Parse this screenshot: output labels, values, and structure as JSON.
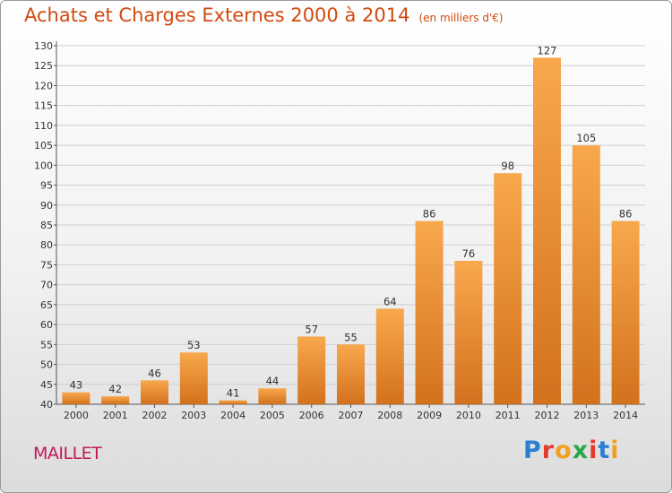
{
  "title": "Achats et Charges Externes 2000 à 2014",
  "unit_note": "(en milliers d'€)",
  "place_name": "MAILLET",
  "logo": {
    "letters": [
      "P",
      "r",
      "o",
      "x",
      "i",
      "t",
      "i"
    ],
    "colors": [
      "#2b7fd1",
      "#e23b2b",
      "#f2a01f",
      "#2aa748",
      "#e23b2b",
      "#2b7fd1",
      "#f2a01f"
    ]
  },
  "colors": {
    "bar_light": "#f8a84d",
    "bar_dark": "#d3711d",
    "title": "#d04a0e"
  },
  "chart_data": {
    "type": "bar",
    "categories": [
      "2000",
      "2001",
      "2002",
      "2003",
      "2004",
      "2005",
      "2006",
      "2007",
      "2008",
      "2009",
      "2010",
      "2011",
      "2012",
      "2013",
      "2014"
    ],
    "values": [
      43,
      42,
      46,
      53,
      41,
      44,
      57,
      55,
      64,
      86,
      76,
      98,
      127,
      105,
      86
    ],
    "title": "Achats et Charges Externes 2000 à 2014",
    "ylim": [
      40,
      130
    ],
    "yticks": [
      40,
      45,
      50,
      55,
      60,
      65,
      70,
      75,
      80,
      85,
      90,
      95,
      100,
      105,
      110,
      115,
      120,
      125,
      130
    ],
    "grid": true
  }
}
